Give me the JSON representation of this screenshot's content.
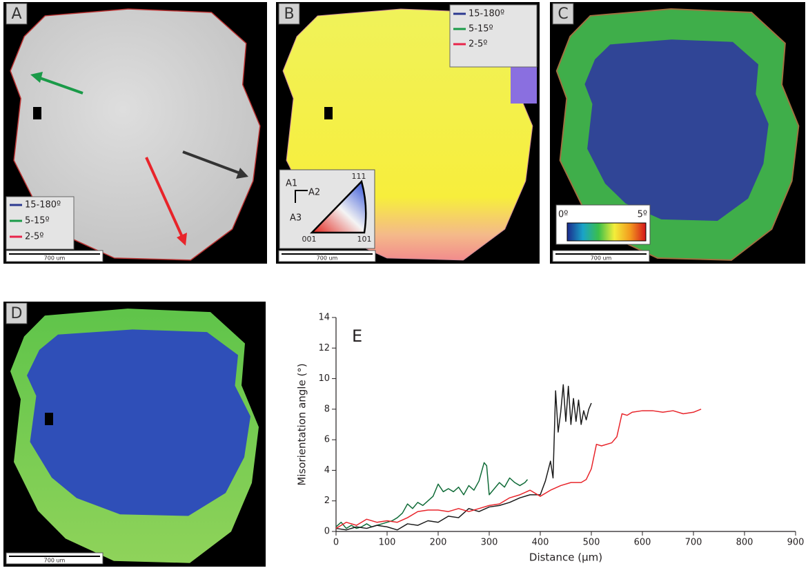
{
  "maps": [
    {
      "label": "A",
      "scale_bar": "700 um",
      "legend": [
        "15-180º",
        "5-15º",
        "2-5º"
      ]
    },
    {
      "label": "B",
      "scale_bar": "700 um",
      "legend": [
        "15-180º",
        "5-15º",
        "2-5º"
      ],
      "ipf_key": {
        "axes": [
          "A1",
          "A2",
          "A3"
        ],
        "corners": [
          "111",
          "001",
          "101"
        ]
      }
    },
    {
      "label": "C",
      "scale_bar": "700 um",
      "color_bar": [
        "0º",
        "5º"
      ]
    },
    {
      "label": "D",
      "scale_bar": "700 um"
    }
  ],
  "chart_data": {
    "type": "line",
    "title": "E",
    "x_label": "Distance (μm)",
    "y_label": "Misorientation angle (°)",
    "xlim": [
      0,
      900
    ],
    "ylim": [
      0,
      14
    ],
    "xticks": [
      0,
      100,
      200,
      300,
      400,
      500,
      600,
      700,
      800,
      900
    ],
    "yticks": [
      0,
      2,
      4,
      6,
      8,
      10,
      12,
      14
    ],
    "grid": false,
    "series": [
      {
        "color": "#0f6b37",
        "x": [
          0,
          10,
          20,
          30,
          40,
          50,
          60,
          70,
          80,
          90,
          100,
          110,
          120,
          130,
          140,
          150,
          160,
          170,
          180,
          190,
          200,
          210,
          220,
          230,
          240,
          250,
          260,
          270,
          280,
          290,
          295,
          300,
          310,
          320,
          330,
          340,
          350,
          360,
          370,
          375
        ],
        "values": [
          0.3,
          0.6,
          0.2,
          0.4,
          0.2,
          0.3,
          0.5,
          0.3,
          0.4,
          0.5,
          0.6,
          0.7,
          0.9,
          1.2,
          1.8,
          1.5,
          1.9,
          1.7,
          2.0,
          2.3,
          3.1,
          2.6,
          2.8,
          2.6,
          2.9,
          2.4,
          3.0,
          2.7,
          3.3,
          4.5,
          4.3,
          2.4,
          2.8,
          3.2,
          2.9,
          3.5,
          3.2,
          3.0,
          3.2,
          3.4
        ]
      },
      {
        "color": "#1a1a1a",
        "x": [
          0,
          20,
          40,
          60,
          80,
          100,
          120,
          140,
          160,
          180,
          200,
          220,
          240,
          260,
          280,
          300,
          320,
          340,
          360,
          380,
          400,
          410,
          420,
          425,
          430,
          435,
          440,
          445,
          450,
          455,
          460,
          465,
          470,
          475,
          480,
          485,
          490,
          495,
          500
        ],
        "values": [
          0.2,
          0.1,
          0.3,
          0.2,
          0.4,
          0.3,
          0.1,
          0.5,
          0.4,
          0.7,
          0.6,
          1.0,
          0.9,
          1.5,
          1.3,
          1.6,
          1.7,
          1.9,
          2.2,
          2.4,
          2.4,
          3.3,
          4.6,
          3.5,
          9.2,
          6.5,
          7.8,
          9.6,
          7.2,
          9.5,
          7.0,
          8.7,
          7.2,
          8.6,
          7.0,
          7.9,
          7.3,
          8.0,
          8.4
        ]
      },
      {
        "color": "#e8242a",
        "x": [
          0,
          20,
          40,
          60,
          80,
          100,
          120,
          140,
          160,
          180,
          200,
          220,
          240,
          260,
          280,
          300,
          320,
          340,
          360,
          380,
          400,
          420,
          440,
          460,
          480,
          490,
          500,
          510,
          520,
          540,
          550,
          560,
          570,
          580,
          600,
          620,
          640,
          660,
          680,
          700,
          715
        ],
        "values": [
          0.2,
          0.6,
          0.4,
          0.8,
          0.6,
          0.7,
          0.6,
          0.9,
          1.3,
          1.4,
          1.4,
          1.3,
          1.5,
          1.3,
          1.5,
          1.7,
          1.8,
          2.2,
          2.4,
          2.7,
          2.3,
          2.7,
          3.0,
          3.2,
          3.2,
          3.4,
          4.1,
          5.7,
          5.6,
          5.8,
          6.2,
          7.7,
          7.6,
          7.8,
          7.9,
          7.9,
          7.8,
          7.9,
          7.7,
          7.8,
          8.0
        ]
      }
    ]
  }
}
